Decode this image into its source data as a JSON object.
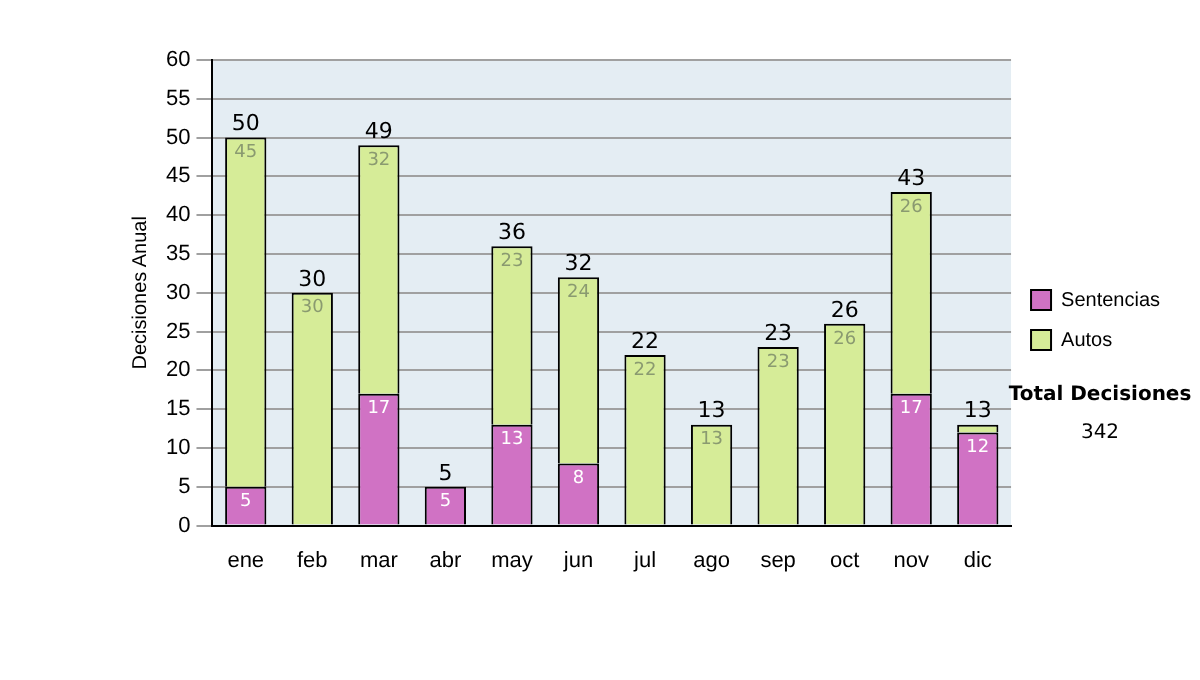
{
  "chart_data": {
    "type": "bar",
    "stacked": true,
    "ylabel": "Decisiones Anual",
    "categories": [
      "ene",
      "feb",
      "mar",
      "abr",
      "may",
      "jun",
      "jul",
      "ago",
      "sep",
      "oct",
      "nov",
      "dic"
    ],
    "series": [
      {
        "name": "Sentencias",
        "color": "#d072c4",
        "values": [
          5,
          null,
          17,
          5,
          13,
          8,
          null,
          null,
          null,
          null,
          17,
          12
        ],
        "value_labels": [
          "5",
          null,
          "17",
          "5",
          "13",
          "8",
          null,
          null,
          null,
          null,
          "17",
          "12"
        ]
      },
      {
        "name": "Autos",
        "color": "#d6ec98",
        "values": [
          45,
          30,
          32,
          null,
          23,
          24,
          22,
          13,
          23,
          26,
          26,
          1
        ],
        "value_labels": [
          "45",
          "30",
          "32",
          null,
          "23",
          "24",
          "22",
          "13",
          "23",
          "26",
          "26",
          null
        ]
      }
    ],
    "totals": [
      "50",
      "30",
      "49",
      "5",
      "36",
      "32",
      "22",
      "13",
      "23",
      "26",
      "43",
      "13"
    ],
    "ylim": [
      0,
      60
    ],
    "yticks": [
      0,
      5,
      10,
      15,
      20,
      25,
      30,
      35,
      40,
      45,
      50,
      55,
      60
    ],
    "grid": "y",
    "legend": "right",
    "annotations": [
      "Total Decisiones",
      "342"
    ]
  }
}
